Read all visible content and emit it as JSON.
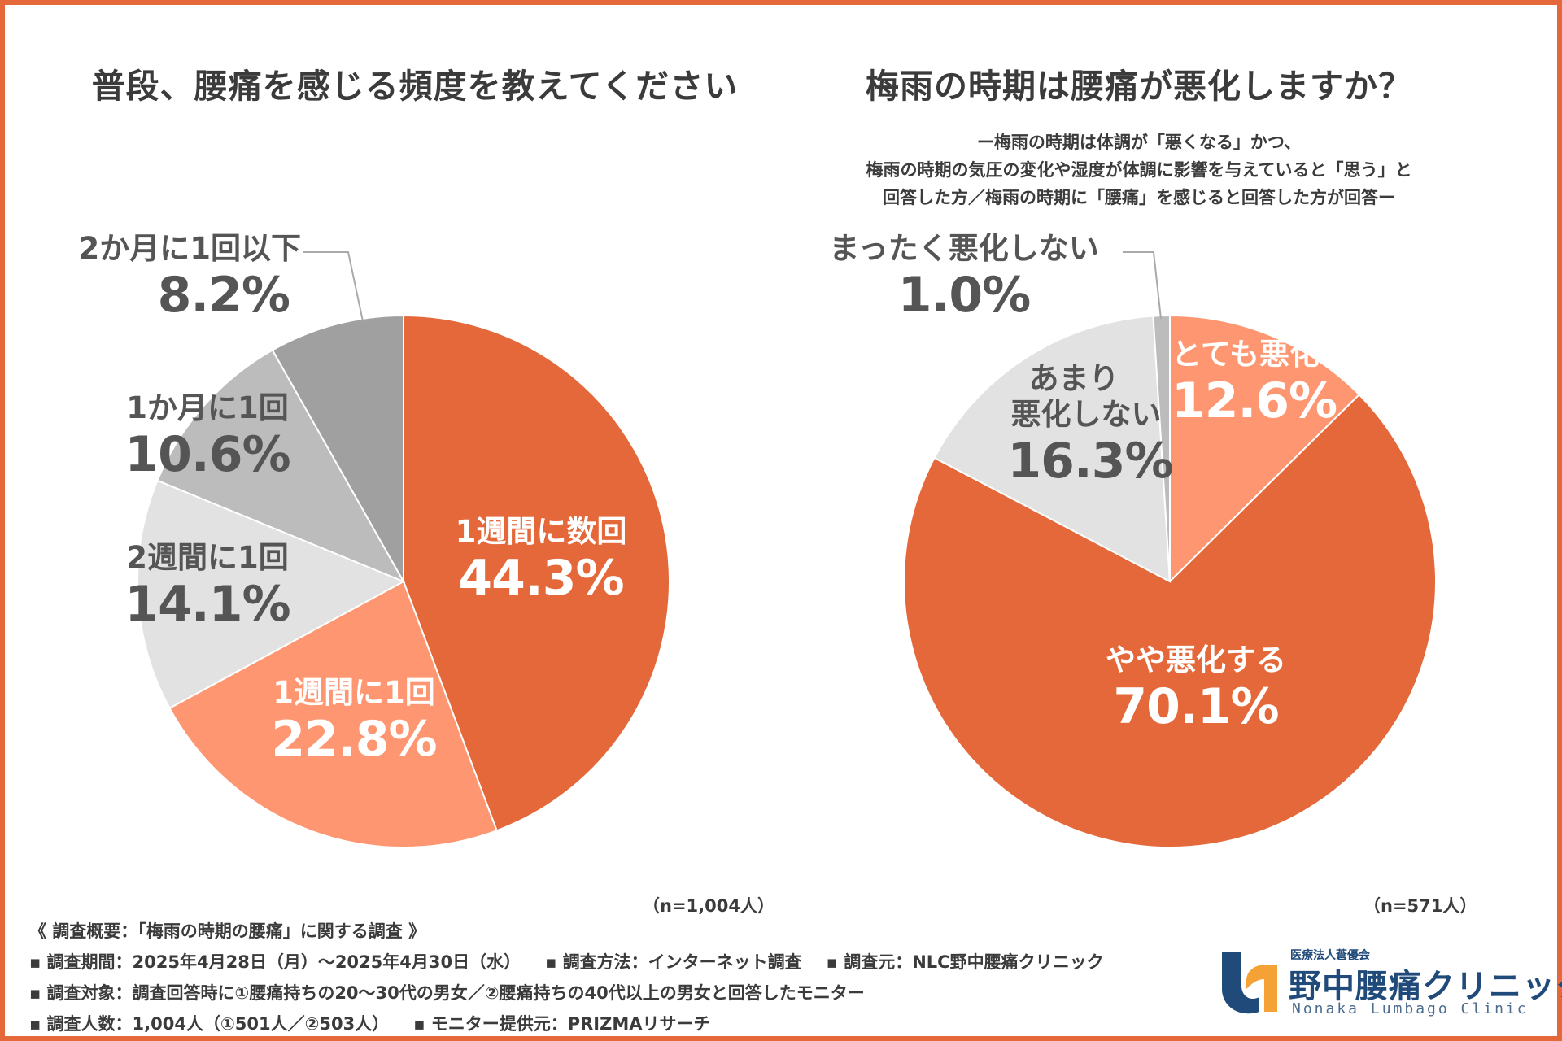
{
  "colors": {
    "border": "#e4683a",
    "orange_dark": "#e4683a",
    "orange_light": "#fe9771",
    "gray_light": "#e2e2e2",
    "gray_mid": "#bcbcbc",
    "gray_dark": "#a0a0a0",
    "logo_navy": "#1f4a7a",
    "logo_orange": "#f4a236"
  },
  "chart_data": [
    {
      "type": "pie",
      "title": "普段、腰痛を感じる頻度を教えてください",
      "n_note": "（n=1,004人）",
      "slices": [
        {
          "label": "1週間に数回",
          "value": 44.3,
          "value_text": "44.3%",
          "color": "#e4683a"
        },
        {
          "label": "1週間に1回",
          "value": 22.8,
          "value_text": "22.8%",
          "color": "#fe9771"
        },
        {
          "label": "2週間に1回",
          "value": 14.1,
          "value_text": "14.1%",
          "color": "#e2e2e2"
        },
        {
          "label": "1か月に1回",
          "value": 10.6,
          "value_text": "10.6%",
          "color": "#bcbcbc"
        },
        {
          "label": "2か月に1回以下",
          "value": 8.2,
          "value_text": "8.2%",
          "color": "#a0a0a0"
        }
      ]
    },
    {
      "type": "pie",
      "title": "梅雨の時期は腰痛が悪化しますか？",
      "subtitle": [
        "ー梅雨の時期は体調が「悪くなる」かつ、",
        "梅雨の時期の気圧の変化や湿度が体調に影響を与えていると「思う」と",
        "回答した方／梅雨の時期に「腰痛」を感じると回答した方が回答ー"
      ],
      "n_note": "（n=571人）",
      "slices": [
        {
          "label": "とても悪化する",
          "value": 12.6,
          "value_text": "12.6%",
          "color": "#fe9771"
        },
        {
          "label": "やや悪化する",
          "value": 70.1,
          "value_text": "70.1%",
          "color": "#e4683a"
        },
        {
          "label": "あまり悪化しない",
          "label_lines": [
            "あまり",
            "悪化しない"
          ],
          "value": 16.3,
          "value_text": "16.3%",
          "color": "#e2e2e2"
        },
        {
          "label": "まったく悪化しない",
          "value": 1.0,
          "value_text": "1.0%",
          "color": "#bcbcbc"
        }
      ]
    }
  ],
  "survey": {
    "heading": "《 調査概要：「梅雨の時期の腰痛」に関する調査 》",
    "period": "▪ 調査期間：2025年4月28日（月）〜2025年4月30日（水）",
    "method": "▪ 調査方法：インターネット調査",
    "organizer": "▪ 調査元：NLC野中腰痛クリニック",
    "target": "▪ 調査対象：調査回答時に①腰痛持ちの20〜30代の男女／②腰痛持ちの40代以上の男女と回答したモニター",
    "count": "▪ 調査人数：1,004人（①501人／②503人）",
    "provider": "▪ モニター提供元：PRIZMAリサーチ"
  },
  "logo": {
    "org": "医療法人蒼優会",
    "name": "野中腰痛クリニック",
    "en": "Nonaka Lumbago Clinic"
  }
}
